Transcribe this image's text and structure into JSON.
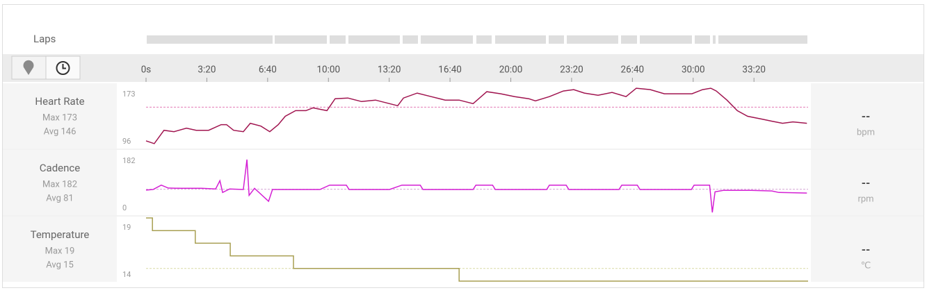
{
  "laps_label": "Laps",
  "time_axis": {
    "xlim": [
      0,
      2178
    ],
    "xticks": [
      {
        "value": 0,
        "label": "0s"
      },
      {
        "value": 200,
        "label": "3:20"
      },
      {
        "value": 400,
        "label": "6:40"
      },
      {
        "value": 600,
        "label": "10:00"
      },
      {
        "value": 800,
        "label": "13:20"
      },
      {
        "value": 1000,
        "label": "16:40"
      },
      {
        "value": 1200,
        "label": "20:00"
      },
      {
        "value": 1400,
        "label": "23:20"
      },
      {
        "value": 1600,
        "label": "26:40"
      },
      {
        "value": 1800,
        "label": "30:00"
      },
      {
        "value": 2000,
        "label": "33:20"
      }
    ]
  },
  "chart_data": [
    {
      "type": "line",
      "title": "Heart Rate",
      "stats": [
        "Max 173",
        "Avg 146"
      ],
      "current": "--",
      "unit": "bpm",
      "color": "#a0144f",
      "avg": 146,
      "avg_color": "#e27ab5",
      "ylim": [
        88,
        178
      ],
      "yticks": [
        96,
        173
      ],
      "x": [
        0,
        27,
        59,
        92,
        133,
        165,
        206,
        247,
        265,
        288,
        320,
        343,
        378,
        407,
        435,
        458,
        492,
        526,
        549,
        595,
        622,
        664,
        709,
        755,
        801,
        828,
        847,
        892,
        938,
        984,
        1030,
        1076,
        1121,
        1167,
        1213,
        1259,
        1281,
        1327,
        1373,
        1407,
        1442,
        1487,
        1533,
        1579,
        1613,
        1659,
        1705,
        1751,
        1796,
        1831,
        1858,
        1876,
        1911,
        1945,
        1979,
        2025,
        2059,
        2094,
        2128,
        2174
      ],
      "values": [
        98,
        94,
        113,
        111,
        116,
        113,
        113,
        121,
        121,
        113,
        111,
        123,
        119,
        111,
        121,
        133,
        141,
        141,
        145,
        141,
        158,
        159,
        154,
        156,
        151,
        148,
        159,
        166,
        161,
        156,
        156,
        151,
        168,
        165,
        161,
        158,
        155,
        161,
        169,
        171,
        166,
        163,
        167,
        161,
        173,
        171,
        165,
        165,
        165,
        171,
        173,
        169,
        156,
        141,
        133,
        129,
        126,
        123,
        125,
        123
      ]
    },
    {
      "type": "line",
      "title": "Cadence",
      "stats": [
        "Max 182",
        "Avg 81"
      ],
      "current": "--",
      "unit": "rpm",
      "color": "#d41fd4",
      "avg": 81,
      "avg_color": "#d6a6d6",
      "ylim": [
        -5,
        210
      ],
      "yticks": [
        0,
        182
      ],
      "x": [
        0,
        23,
        50,
        73,
        114,
        183,
        229,
        243,
        252,
        275,
        320,
        332,
        339,
        357,
        403,
        416,
        481,
        572,
        604,
        659,
        668,
        801,
        842,
        902,
        911,
        1076,
        1085,
        1140,
        1149,
        1318,
        1327,
        1382,
        1391,
        1556,
        1565,
        1616,
        1625,
        1794,
        1803,
        1854,
        1863,
        1872,
        1899,
        1991,
        2059,
        2082,
        2174
      ],
      "values": [
        78,
        80,
        95,
        85,
        84,
        84,
        82,
        110,
        70,
        82,
        80,
        182,
        60,
        84,
        40,
        80,
        80,
        80,
        95,
        95,
        80,
        80,
        95,
        95,
        80,
        80,
        95,
        95,
        80,
        80,
        95,
        95,
        80,
        80,
        95,
        95,
        80,
        80,
        95,
        95,
        2,
        72,
        77,
        77,
        75,
        70,
        68
      ]
    },
    {
      "type": "line",
      "title": "Temperature",
      "stats": [
        "Max 19",
        "Avg 15"
      ],
      "current": "--",
      "unit": "℃",
      "color": "#a89f52",
      "avg": 15,
      "avg_color": "#d9dca6",
      "ylim": [
        14,
        19
      ],
      "yticks": [
        14,
        19
      ],
      "x": [
        0,
        21,
        21,
        162,
        162,
        277,
        277,
        485,
        485,
        1030,
        1030,
        2178
      ],
      "values": [
        19,
        19,
        18,
        18,
        17,
        17,
        16,
        16,
        15,
        15,
        14,
        14
      ]
    }
  ]
}
